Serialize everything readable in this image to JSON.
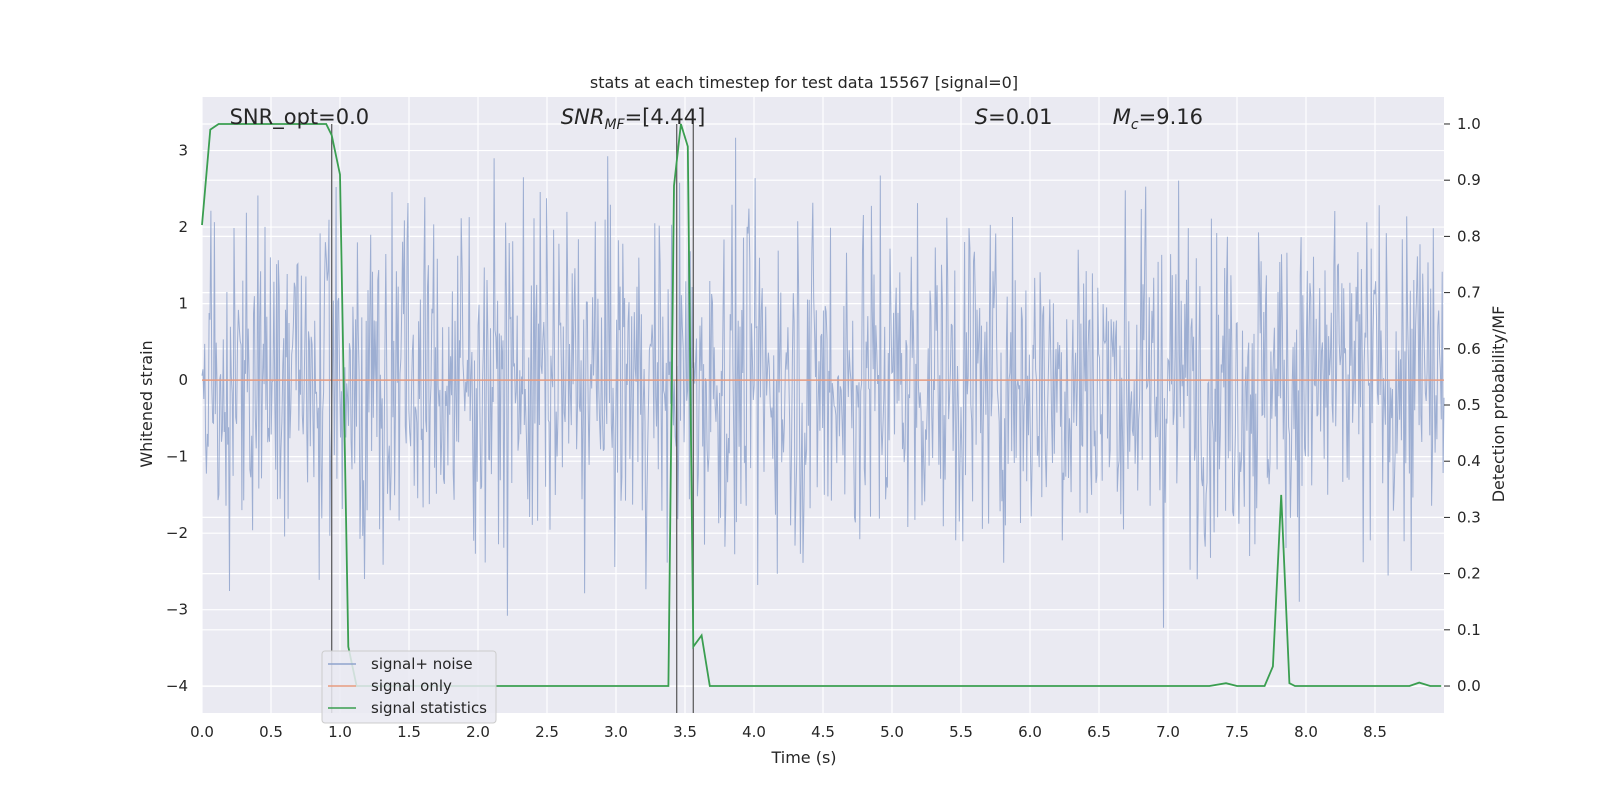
{
  "chart_data": {
    "type": "line",
    "title": "stats at each timestep for test data 15567 [signal=0]",
    "xlabel": "Time (s)",
    "ylabel_left": "Whitened strain",
    "ylabel_right": "Detection probability/MF",
    "xlim": [
      0.0,
      9.0
    ],
    "ylim_left": [
      -4.35,
      3.7
    ],
    "ylim_right": [
      -0.048,
      1.048
    ],
    "x_ticks": [
      "0.0",
      "0.5",
      "1.0",
      "1.5",
      "2.0",
      "2.5",
      "3.0",
      "3.5",
      "4.0",
      "4.5",
      "5.0",
      "5.5",
      "6.0",
      "6.5",
      "7.0",
      "7.5",
      "8.0",
      "8.5"
    ],
    "y_ticks_left": [
      "3",
      "2",
      "1",
      "0",
      "−1",
      "−2",
      "−3",
      "−4"
    ],
    "y_ticks_right": [
      "1.0",
      "0.9",
      "0.8",
      "0.7",
      "0.6",
      "0.5",
      "0.4",
      "0.3",
      "0.2",
      "0.1",
      "0.0"
    ],
    "annotations": {
      "snr_opt": {
        "label": "SNR_opt=0.0",
        "x": 0.2
      },
      "snr_mf": {
        "base": "SNR",
        "sub": "MF",
        "tail": "=[4.44]",
        "x": 2.6
      },
      "s": {
        "italic": "S",
        "tail": "=0.01",
        "x": 5.6
      },
      "mc": {
        "italic": "M",
        "sub": "c",
        "tail": "=9.16",
        "x": 6.6
      }
    },
    "vertical_lines": [
      0.94,
      3.44,
      3.56
    ],
    "series": [
      {
        "name": "signal+ noise",
        "color": "#8fa3cc",
        "axis": "left",
        "kind": "noise",
        "n_points": 1400,
        "approx_range": [
          -3.7,
          3.35
        ]
      },
      {
        "name": "signal only",
        "color": "#e79b7f",
        "axis": "left",
        "kind": "flat",
        "value": 0.0
      },
      {
        "name": "signal statistics",
        "color": "#3a9e50",
        "axis": "right",
        "x": [
          0.0,
          0.06,
          0.12,
          0.3,
          0.5,
          0.7,
          0.9,
          0.94,
          1.0,
          1.06,
          1.12,
          1.5,
          2.0,
          2.5,
          3.0,
          3.3,
          3.38,
          3.42,
          3.47,
          3.52,
          3.56,
          3.62,
          3.68,
          4.0,
          5.0,
          6.0,
          7.0,
          7.3,
          7.42,
          7.5,
          7.7,
          7.76,
          7.82,
          7.88,
          7.92,
          8.0,
          8.5,
          8.75,
          8.82,
          8.9,
          8.98
        ],
        "y": [
          0.82,
          0.99,
          1.0,
          1.0,
          1.0,
          1.0,
          1.0,
          0.98,
          0.91,
          0.07,
          0.0,
          0.0,
          0.0,
          0.0,
          0.0,
          0.0,
          0.0,
          0.89,
          1.0,
          0.96,
          0.07,
          0.09,
          0.0,
          0.0,
          0.0,
          0.0,
          0.0,
          0.0,
          0.005,
          0.0,
          0.0,
          0.035,
          0.34,
          0.005,
          0.0,
          0.0,
          0.0,
          0.0,
          0.006,
          0.0,
          0.0
        ]
      }
    ],
    "legend": {
      "position": "lower-left",
      "entries": [
        "signal+ noise",
        "signal only",
        "signal statistics"
      ]
    },
    "grid": true
  }
}
